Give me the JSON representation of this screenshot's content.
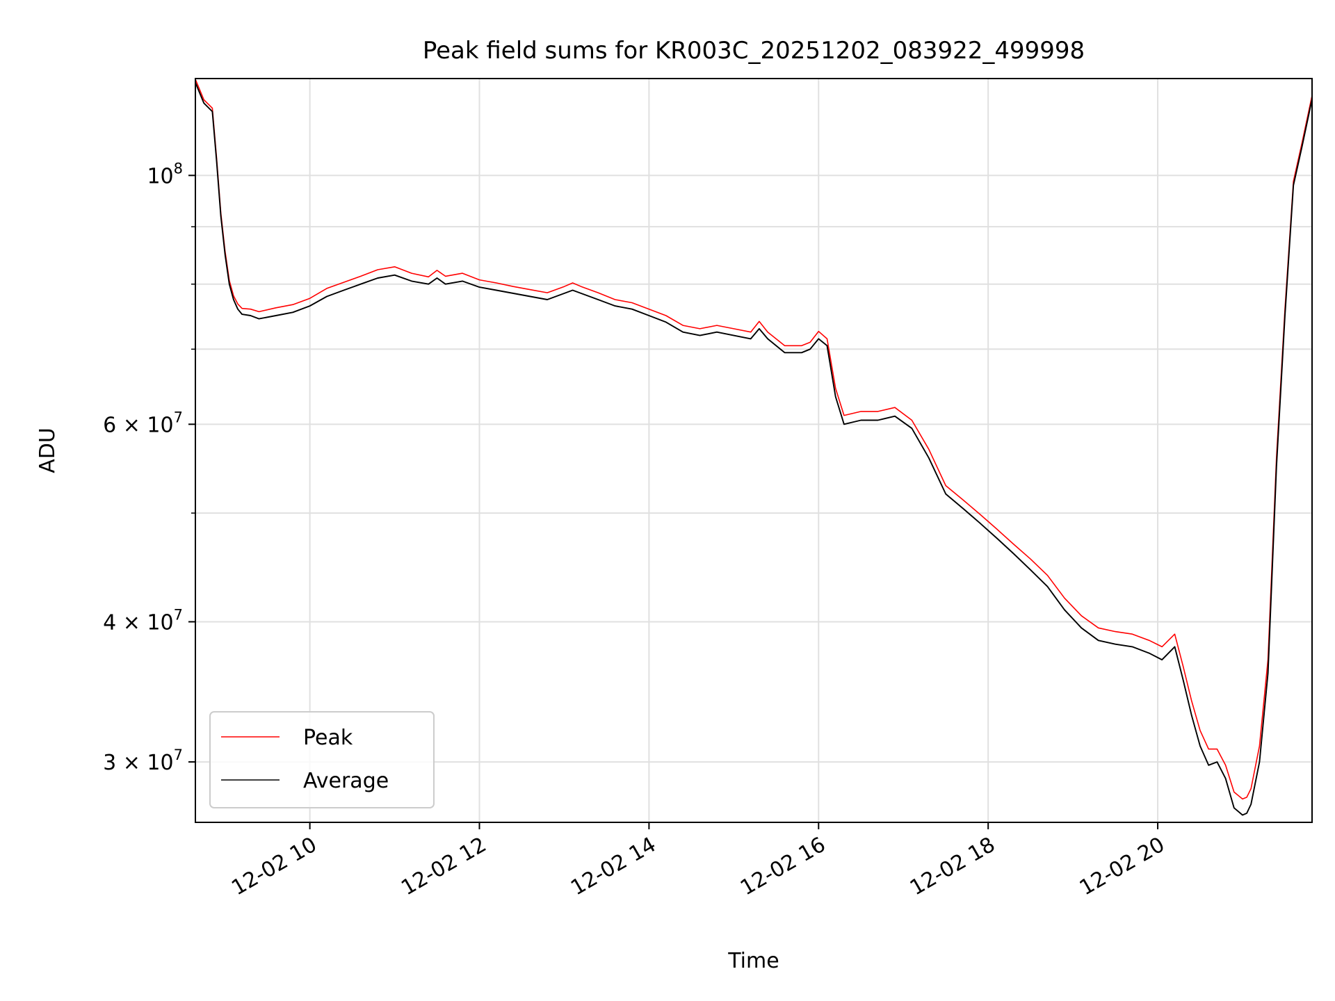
{
  "chart_data": {
    "type": "line",
    "title": "Peak field sums for KR003C_20251202_083922_499998",
    "xlabel": "Time",
    "ylabel": "ADU",
    "y_scale": "log",
    "x_unit": "hours on 2025-12-02",
    "xlim": [
      8.65,
      21.82
    ],
    "ylim": [
      26500000,
      122000000
    ],
    "grid": true,
    "legend_position": "lower-left",
    "x_ticks": [
      {
        "value": 10,
        "label": "12-02 10"
      },
      {
        "value": 12,
        "label": "12-02 12"
      },
      {
        "value": 14,
        "label": "12-02 14"
      },
      {
        "value": 16,
        "label": "12-02 16"
      },
      {
        "value": 18,
        "label": "12-02 18"
      },
      {
        "value": 20,
        "label": "12-02 20"
      }
    ],
    "y_ticks": [
      {
        "value": 100000000,
        "base": "10",
        "exp": "8"
      },
      {
        "value": 60000000,
        "base": "6 × 10",
        "exp": "7"
      },
      {
        "value": 40000000,
        "base": "4 × 10",
        "exp": "7"
      },
      {
        "value": 30000000,
        "base": "3 × 10",
        "exp": "7"
      }
    ],
    "y_minor_ticks": [
      50000000,
      70000000,
      80000000,
      90000000
    ],
    "series": [
      {
        "name": "Peak",
        "color": "#ff0000",
        "line_width": 1
      },
      {
        "name": "Average",
        "color": "#000000",
        "line_width": 1.2
      }
    ],
    "x": [
      8.65,
      8.75,
      8.85,
      8.9,
      8.95,
      9.0,
      9.05,
      9.1,
      9.15,
      9.2,
      9.3,
      9.4,
      9.6,
      9.8,
      10.0,
      10.2,
      10.4,
      10.6,
      10.8,
      11.0,
      11.2,
      11.4,
      11.5,
      11.6,
      11.8,
      12.0,
      12.2,
      12.4,
      12.6,
      12.8,
      13.0,
      13.1,
      13.2,
      13.4,
      13.6,
      13.8,
      14.0,
      14.2,
      14.4,
      14.6,
      14.8,
      15.0,
      15.2,
      15.3,
      15.4,
      15.6,
      15.8,
      15.9,
      16.0,
      16.1,
      16.2,
      16.3,
      16.5,
      16.7,
      16.9,
      17.1,
      17.3,
      17.5,
      17.7,
      17.9,
      18.1,
      18.3,
      18.5,
      18.7,
      18.9,
      19.1,
      19.3,
      19.5,
      19.7,
      19.9,
      20.05,
      20.2,
      20.3,
      20.4,
      20.5,
      20.6,
      20.7,
      20.8,
      20.9,
      21.0,
      21.05,
      21.1,
      21.2,
      21.3,
      21.4,
      21.5,
      21.6,
      21.7,
      21.82
    ],
    "average": [
      121000000,
      116000000,
      114000000,
      103000000,
      92000000,
      85000000,
      80000000,
      77500000,
      76000000,
      75200000,
      75000000,
      74500000,
      75000000,
      75500000,
      76500000,
      78000000,
      79000000,
      80000000,
      81000000,
      81500000,
      80500000,
      80000000,
      81000000,
      80000000,
      80500000,
      79500000,
      79000000,
      78500000,
      78000000,
      77500000,
      78500000,
      79000000,
      78500000,
      77500000,
      76500000,
      76000000,
      75000000,
      74000000,
      72500000,
      72000000,
      72500000,
      72000000,
      71500000,
      73000000,
      71500000,
      69500000,
      69500000,
      70000000,
      71500000,
      70500000,
      63500000,
      60000000,
      60500000,
      60500000,
      61000000,
      59500000,
      56000000,
      52000000,
      50500000,
      49000000,
      47500000,
      46000000,
      44500000,
      43000000,
      41000000,
      39500000,
      38500000,
      38200000,
      38000000,
      37500000,
      37000000,
      38000000,
      35500000,
      33000000,
      31000000,
      29800000,
      30000000,
      29000000,
      27300000,
      26900000,
      27000000,
      27500000,
      30000000,
      36000000,
      55000000,
      75000000,
      98000000,
      106000000,
      117000000
    ],
    "peak": [
      121800000,
      116800000,
      114800000,
      103700000,
      92600000,
      85600000,
      80600000,
      78100000,
      76800000,
      76100000,
      76000000,
      75600000,
      76200000,
      76700000,
      77700000,
      79300000,
      80300000,
      81300000,
      82400000,
      82900000,
      81800000,
      81200000,
      82300000,
      81300000,
      81800000,
      80700000,
      80200000,
      79600000,
      79100000,
      78600000,
      79600000,
      80200000,
      79600000,
      78600000,
      77500000,
      77000000,
      76000000,
      75000000,
      73500000,
      73000000,
      73500000,
      73000000,
      72500000,
      74100000,
      72500000,
      70500000,
      70500000,
      71000000,
      72600000,
      71500000,
      64600000,
      61100000,
      61600000,
      61600000,
      62100000,
      60500000,
      57000000,
      52900000,
      51400000,
      49900000,
      48400000,
      46900000,
      45500000,
      44000000,
      42000000,
      40500000,
      39500000,
      39200000,
      39000000,
      38500000,
      38000000,
      39000000,
      36500000,
      34000000,
      32000000,
      30800000,
      30800000,
      29800000,
      28200000,
      27800000,
      27900000,
      28400000,
      31000000,
      37000000,
      56000000,
      76000000,
      98800000,
      106800000,
      117800000
    ]
  }
}
